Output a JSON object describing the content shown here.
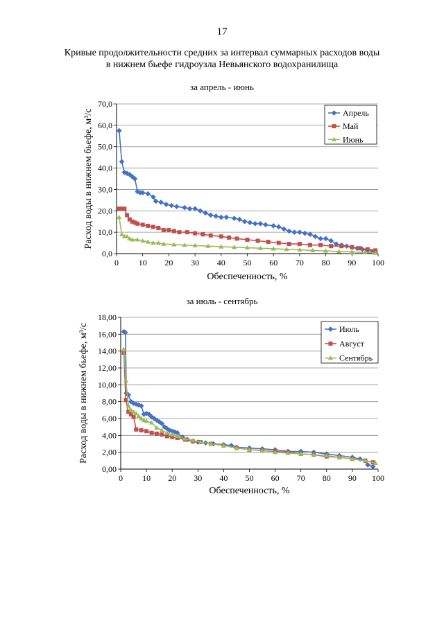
{
  "page": {
    "number": "17",
    "title_line1": "Кривые продолжительности средних за интервал суммарных расходов воды",
    "title_line2": "в нижнем бьефе гидроузла Невьянского водохранилища",
    "subtitle1": "за апрель - июнь",
    "subtitle2": "за июль - сентябрь"
  },
  "colors": {
    "blue": "#4472C4",
    "red": "#C0504D",
    "green": "#9BBB59"
  },
  "chart_data": [
    {
      "type": "line",
      "title": "за апрель - июнь",
      "xlabel": "Обеспеченность, %",
      "ylabel": "Расход воды в нижнем бьефе, м³/с",
      "xlim": [
        0,
        100
      ],
      "ylim": [
        0,
        70
      ],
      "xticks": [
        0,
        10,
        20,
        30,
        40,
        50,
        60,
        70,
        80,
        90,
        100
      ],
      "yticks": [
        0,
        10,
        20,
        30,
        40,
        50,
        60,
        70
      ],
      "ytick_labels": [
        "0,0",
        "10,0",
        "20,0",
        "30,0",
        "40,0",
        "50,0",
        "60,0",
        "70,0"
      ],
      "legend_position": "top-right",
      "series": [
        {
          "name": "Апрель",
          "color": "#4472C4",
          "marker": "diamond",
          "points": [
            [
              1,
              57.5
            ],
            [
              2,
              43
            ],
            [
              3,
              38
            ],
            [
              4,
              37.5
            ],
            [
              5,
              37
            ],
            [
              6,
              36
            ],
            [
              7,
              35
            ],
            [
              8,
              29
            ],
            [
              9,
              28.5
            ],
            [
              10,
              28.5
            ],
            [
              12,
              28
            ],
            [
              14,
              26.5
            ],
            [
              15,
              24.5
            ],
            [
              17,
              24
            ],
            [
              19,
              23
            ],
            [
              21,
              22.5
            ],
            [
              23,
              22
            ],
            [
              26,
              21.5
            ],
            [
              28,
              21
            ],
            [
              30,
              21
            ],
            [
              32,
              20
            ],
            [
              34,
              19
            ],
            [
              36,
              18
            ],
            [
              38,
              17.5
            ],
            [
              40,
              17
            ],
            [
              42,
              17
            ],
            [
              45,
              16.5
            ],
            [
              47,
              16
            ],
            [
              49,
              15
            ],
            [
              51,
              14.5
            ],
            [
              53,
              14
            ],
            [
              55,
              14
            ],
            [
              57,
              13.5
            ],
            [
              60,
              13
            ],
            [
              62,
              12.5
            ],
            [
              64,
              11.5
            ],
            [
              66,
              10.5
            ],
            [
              68,
              10
            ],
            [
              70,
              10
            ],
            [
              72,
              9.5
            ],
            [
              74,
              9
            ],
            [
              76,
              8
            ],
            [
              78,
              7
            ],
            [
              80,
              7
            ],
            [
              82,
              6
            ],
            [
              84,
              4.5
            ],
            [
              86,
              4
            ],
            [
              88,
              3.5
            ],
            [
              90,
              3
            ],
            [
              92,
              2.5
            ],
            [
              94,
              2
            ],
            [
              96,
              1.5
            ],
            [
              98,
              1
            ],
            [
              99,
              0.7
            ]
          ]
        },
        {
          "name": "Май",
          "color": "#C0504D",
          "marker": "square",
          "points": [
            [
              1,
              21
            ],
            [
              2,
              21
            ],
            [
              3,
              21
            ],
            [
              4,
              18
            ],
            [
              5,
              16
            ],
            [
              6,
              15
            ],
            [
              7,
              14.5
            ],
            [
              8,
              14
            ],
            [
              10,
              13.5
            ],
            [
              12,
              13
            ],
            [
              14,
              12.5
            ],
            [
              16,
              12
            ],
            [
              18,
              11
            ],
            [
              20,
              11
            ],
            [
              22,
              10.5
            ],
            [
              24,
              10
            ],
            [
              27,
              10
            ],
            [
              30,
              9.5
            ],
            [
              33,
              9
            ],
            [
              36,
              8.5
            ],
            [
              40,
              8
            ],
            [
              43,
              7.5
            ],
            [
              46,
              7
            ],
            [
              50,
              6.5
            ],
            [
              54,
              6
            ],
            [
              58,
              5.5
            ],
            [
              62,
              5
            ],
            [
              66,
              4.5
            ],
            [
              70,
              4.5
            ],
            [
              74,
              4
            ],
            [
              78,
              4
            ],
            [
              82,
              3.5
            ],
            [
              86,
              3.5
            ],
            [
              90,
              3
            ],
            [
              93,
              2.5
            ],
            [
              96,
              2
            ],
            [
              99,
              1.5
            ]
          ]
        },
        {
          "name": "Июнь",
          "color": "#9BBB59",
          "marker": "triangle",
          "points": [
            [
              1,
              17
            ],
            [
              2,
              9
            ],
            [
              3,
              8
            ],
            [
              4,
              8
            ],
            [
              5,
              7
            ],
            [
              6,
              6.5
            ],
            [
              8,
              6.5
            ],
            [
              10,
              6
            ],
            [
              12,
              5.5
            ],
            [
              14,
              5
            ],
            [
              16,
              5
            ],
            [
              18,
              4.5
            ],
            [
              22,
              4.2
            ],
            [
              26,
              4
            ],
            [
              30,
              3.8
            ],
            [
              35,
              3.5
            ],
            [
              40,
              3.2
            ],
            [
              45,
              3
            ],
            [
              50,
              2.8
            ],
            [
              55,
              2.5
            ],
            [
              60,
              2.3
            ],
            [
              65,
              2
            ],
            [
              70,
              1.8
            ],
            [
              75,
              1.5
            ],
            [
              80,
              1.3
            ],
            [
              85,
              1
            ],
            [
              90,
              0.8
            ],
            [
              95,
              0.5
            ],
            [
              99,
              0.3
            ]
          ]
        }
      ]
    },
    {
      "type": "line",
      "title": "за июль - сентябрь",
      "xlabel": "Обеспеченность, %",
      "ylabel": "Расход воды в нижнем бьефе, м³/с",
      "xlim": [
        0,
        100
      ],
      "ylim": [
        0,
        18
      ],
      "xticks": [
        0,
        10,
        20,
        30,
        40,
        50,
        60,
        70,
        80,
        90,
        100
      ],
      "yticks": [
        0,
        2,
        4,
        6,
        8,
        10,
        12,
        14,
        16,
        18
      ],
      "ytick_labels": [
        "0,00",
        "2,00",
        "4,00",
        "6,00",
        "8,00",
        "10,00",
        "12,00",
        "14,00",
        "16,00",
        "18,00"
      ],
      "legend_position": "top-right",
      "series": [
        {
          "name": "Июль",
          "color": "#4472C4",
          "marker": "diamond",
          "points": [
            [
              1.2,
              16.3
            ],
            [
              1.8,
              16.2
            ],
            [
              2.2,
              9
            ],
            [
              3,
              8.8
            ],
            [
              4,
              8
            ],
            [
              5,
              7.8
            ],
            [
              6,
              7.7
            ],
            [
              7,
              7.6
            ],
            [
              8,
              7.5
            ],
            [
              9,
              6.5
            ],
            [
              10,
              6.6
            ],
            [
              11,
              6.5
            ],
            [
              12,
              6.2
            ],
            [
              13,
              6
            ],
            [
              14,
              5.8
            ],
            [
              15,
              5.6
            ],
            [
              16,
              5.4
            ],
            [
              17,
              5
            ],
            [
              18,
              4.8
            ],
            [
              19,
              4.6
            ],
            [
              20,
              4.5
            ],
            [
              21,
              4.4
            ],
            [
              22,
              4.3
            ],
            [
              24,
              3.8
            ],
            [
              26,
              3.5
            ],
            [
              28,
              3.3
            ],
            [
              30,
              3.2
            ],
            [
              33,
              3.1
            ],
            [
              36,
              3
            ],
            [
              40,
              2.9
            ],
            [
              43,
              2.8
            ],
            [
              45,
              2.6
            ],
            [
              50,
              2.5
            ],
            [
              55,
              2.4
            ],
            [
              60,
              2.3
            ],
            [
              65,
              2.1
            ],
            [
              70,
              2.1
            ],
            [
              75,
              2
            ],
            [
              80,
              1.8
            ],
            [
              85,
              1.6
            ],
            [
              90,
              1.4
            ],
            [
              93,
              1.2
            ],
            [
              95,
              1
            ],
            [
              96,
              0.5
            ],
            [
              98,
              0.3
            ]
          ]
        },
        {
          "name": "Август",
          "color": "#C0504D",
          "marker": "square",
          "points": [
            [
              1.2,
              13.8
            ],
            [
              2,
              8.2
            ],
            [
              3,
              6.8
            ],
            [
              4,
              6.5
            ],
            [
              5,
              6.2
            ],
            [
              6,
              4.7
            ],
            [
              8,
              4.6
            ],
            [
              10,
              4.5
            ],
            [
              12,
              4.3
            ],
            [
              14,
              4.2
            ],
            [
              16,
              4.1
            ],
            [
              18,
              3.9
            ],
            [
              20,
              3.8
            ],
            [
              22,
              3.7
            ],
            [
              25,
              3.5
            ],
            [
              28,
              3.3
            ],
            [
              31,
              3.2
            ],
            [
              35,
              3
            ],
            [
              40,
              2.8
            ],
            [
              45,
              2.5
            ],
            [
              50,
              2.3
            ],
            [
              55,
              2.2
            ],
            [
              60,
              2.1
            ],
            [
              65,
              2
            ],
            [
              70,
              1.8
            ],
            [
              75,
              1.7
            ],
            [
              80,
              1.5
            ],
            [
              85,
              1.4
            ],
            [
              90,
              1.2
            ],
            [
              95,
              1
            ],
            [
              98,
              0.8
            ]
          ]
        },
        {
          "name": "Сентябрь",
          "color": "#9BBB59",
          "marker": "triangle",
          "points": [
            [
              1.2,
              14.2
            ],
            [
              2,
              10.5
            ],
            [
              3,
              7.5
            ],
            [
              4,
              7
            ],
            [
              5,
              6.8
            ],
            [
              6,
              6.6
            ],
            [
              7,
              6.3
            ],
            [
              8,
              6
            ],
            [
              9,
              5.8
            ],
            [
              10,
              5.7
            ],
            [
              12,
              5.5
            ],
            [
              14,
              4.9
            ],
            [
              16,
              4.6
            ],
            [
              18,
              4.3
            ],
            [
              20,
              4.1
            ],
            [
              22,
              3.9
            ],
            [
              25,
              3.6
            ],
            [
              28,
              3.4
            ],
            [
              31,
              3.2
            ],
            [
              35,
              3
            ],
            [
              40,
              2.8
            ],
            [
              45,
              2.5
            ],
            [
              50,
              2.3
            ],
            [
              55,
              2.2
            ],
            [
              60,
              2
            ],
            [
              65,
              1.9
            ],
            [
              70,
              1.8
            ],
            [
              75,
              1.7
            ],
            [
              80,
              1.6
            ],
            [
              85,
              1.4
            ],
            [
              90,
              1.2
            ],
            [
              95,
              1
            ],
            [
              99,
              0.7
            ]
          ]
        }
      ]
    }
  ]
}
